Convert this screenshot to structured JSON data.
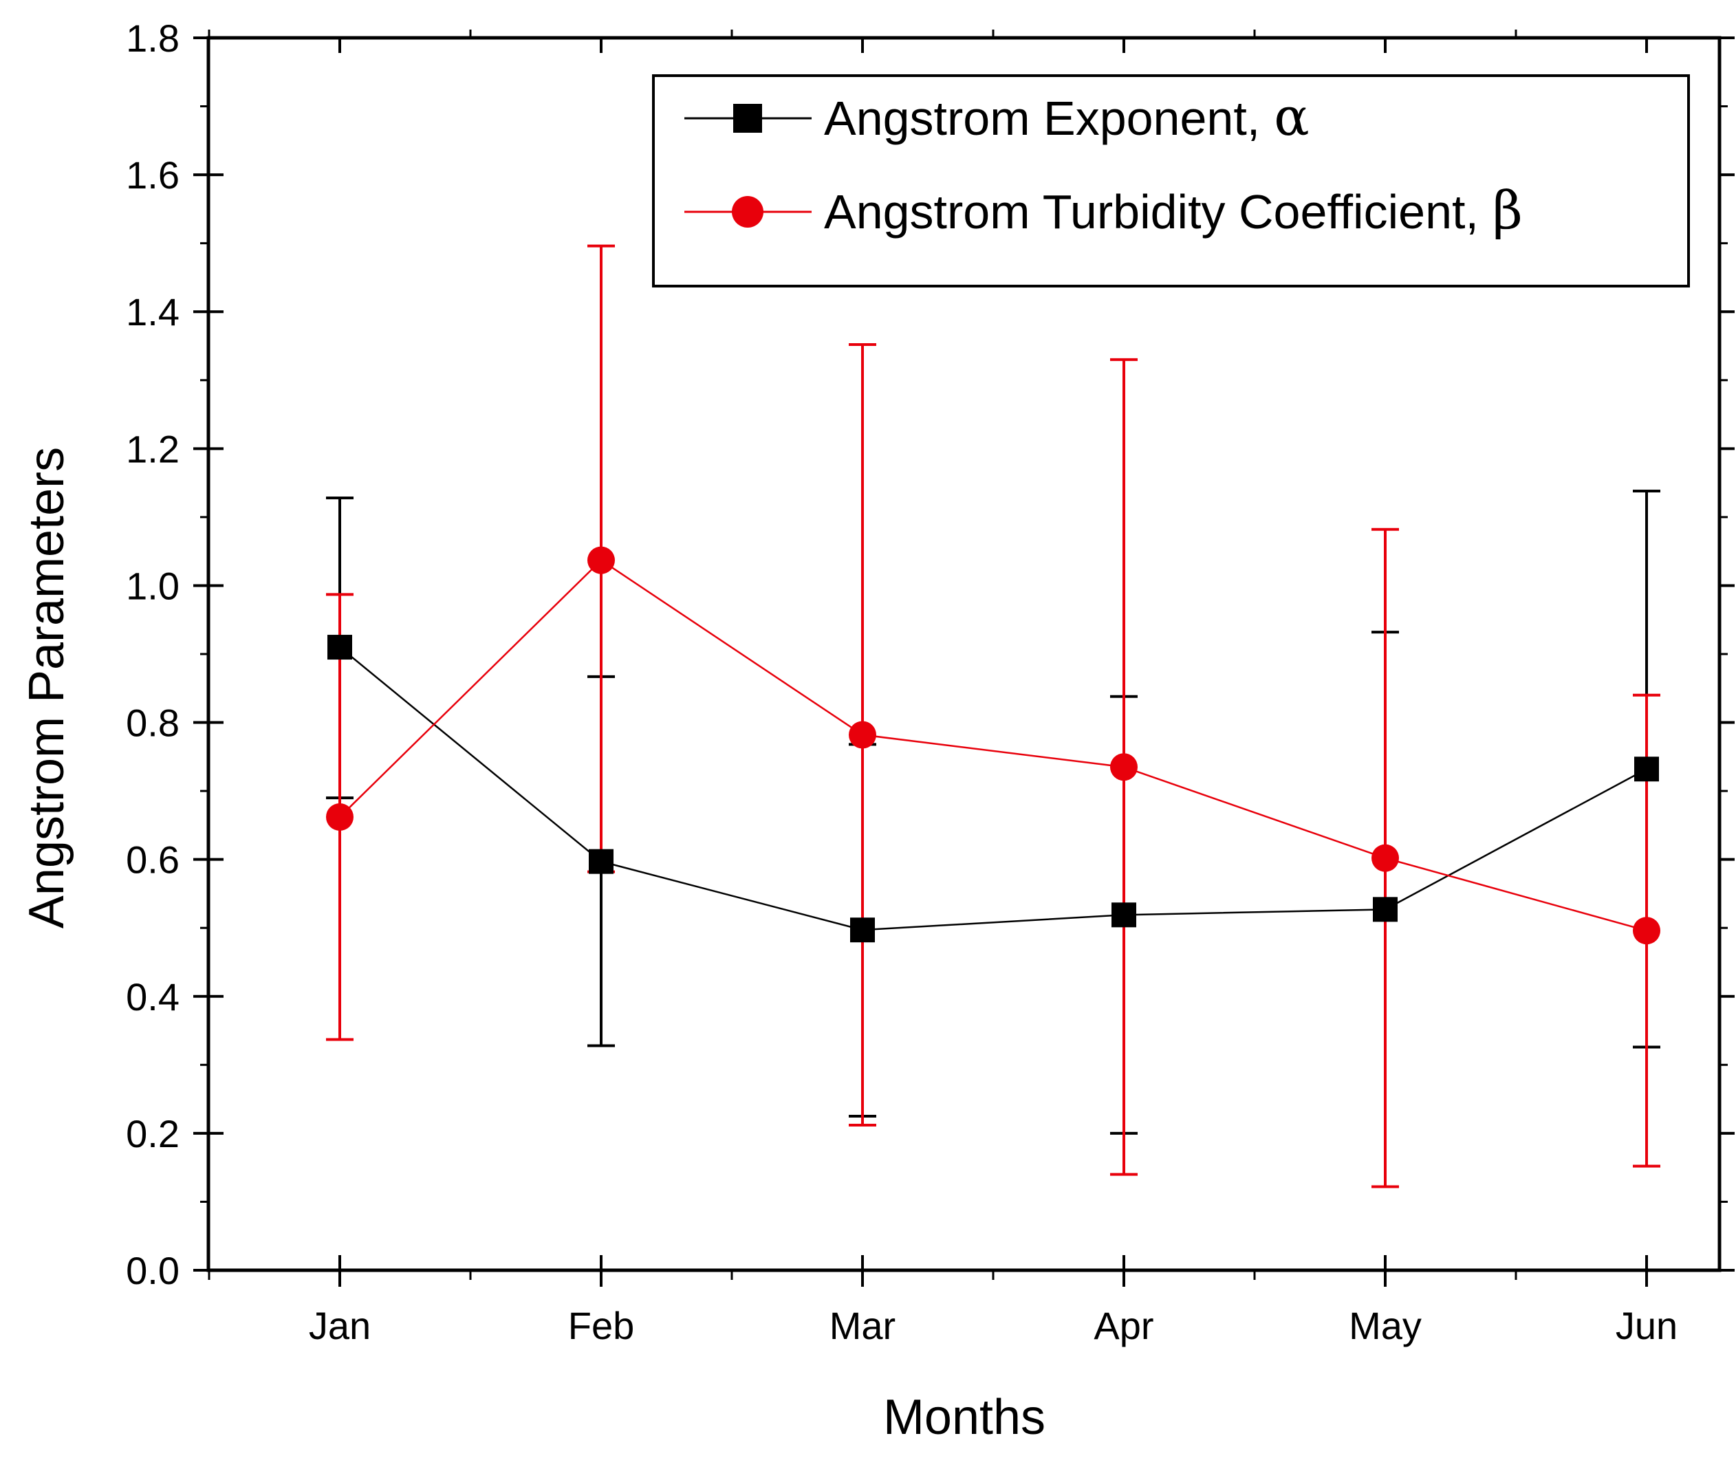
{
  "chart_data": {
    "type": "line",
    "title": "",
    "xlabel": "Months",
    "ylabel": "Angstrom Parameters",
    "categories": [
      "Jan",
      "Feb",
      "Mar",
      "Apr",
      "May",
      "Jun"
    ],
    "ylim": [
      0.0,
      1.8
    ],
    "yticks": [
      "0.0",
      "0.2",
      "0.4",
      "0.6",
      "0.8",
      "1.0",
      "1.2",
      "1.4",
      "1.6",
      "1.8"
    ],
    "legend_position": "top-right",
    "series": [
      {
        "name": "Angstrom Exponent,",
        "symbol": "α",
        "marker": "square",
        "color": "#000000",
        "values": [
          0.91,
          0.597,
          0.497,
          0.519,
          0.527,
          0.732
        ],
        "err_low": [
          0.69,
          0.328,
          0.225,
          0.2,
          0.122,
          0.326
        ],
        "err_high": [
          1.128,
          0.867,
          0.768,
          0.838,
          0.932,
          1.138
        ]
      },
      {
        "name": "Angstrom Turbidity Coefficient,",
        "symbol": "β",
        "marker": "circle",
        "color": "#e8000b",
        "values": [
          0.662,
          1.037,
          0.782,
          0.735,
          0.602,
          0.496
        ],
        "err_low": [
          0.337,
          0.582,
          0.212,
          0.14,
          0.122,
          0.152
        ],
        "err_high": [
          0.987,
          1.496,
          1.352,
          1.33,
          1.082,
          0.84
        ]
      }
    ]
  }
}
